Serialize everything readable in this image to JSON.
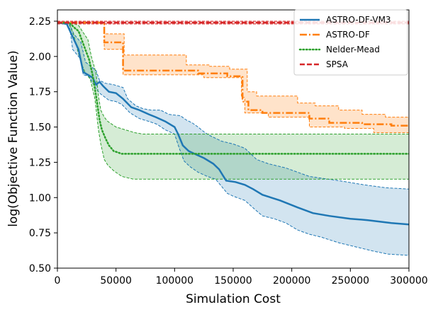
{
  "chart_data": {
    "type": "line",
    "xlabel": "Simulation Cost",
    "ylabel": "log(Objective Function Value)",
    "xlim": [
      0,
      300000
    ],
    "ylim": [
      0.5,
      2.33
    ],
    "xticks": [
      0,
      50000,
      100000,
      150000,
      200000,
      250000,
      300000
    ],
    "xtick_labels": [
      "0",
      "50000",
      "100000",
      "150000",
      "200000",
      "250000",
      "300000"
    ],
    "yticks": [
      0.5,
      0.75,
      1.0,
      1.25,
      1.5,
      1.75,
      2.0,
      2.25
    ],
    "ytick_labels": [
      "0.50",
      "0.75",
      "1.00",
      "1.25",
      "1.50",
      "1.75",
      "2.00",
      "2.25"
    ],
    "grid": false,
    "legend_position": "top-right",
    "series": [
      {
        "name": "ASTRO-DF-VM3",
        "color": "#1f77b4",
        "line_style": "solid",
        "band_opacity": 0.2,
        "points": [
          [
            0,
            2.24
          ],
          [
            8000,
            2.23
          ],
          [
            13000,
            2.14
          ],
          [
            18000,
            2.05
          ],
          [
            22000,
            1.89
          ],
          [
            30000,
            1.85
          ],
          [
            33000,
            1.8
          ],
          [
            36000,
            1.82
          ],
          [
            39000,
            1.79
          ],
          [
            44000,
            1.75
          ],
          [
            50000,
            1.74
          ],
          [
            56000,
            1.7
          ],
          [
            63000,
            1.64
          ],
          [
            70000,
            1.62
          ],
          [
            78000,
            1.59
          ],
          [
            84000,
            1.57
          ],
          [
            92000,
            1.54
          ],
          [
            100000,
            1.5
          ],
          [
            103000,
            1.45
          ],
          [
            107000,
            1.37
          ],
          [
            112000,
            1.33
          ],
          [
            117000,
            1.31
          ],
          [
            125000,
            1.28
          ],
          [
            133000,
            1.24
          ],
          [
            138000,
            1.2
          ],
          [
            141000,
            1.16
          ],
          [
            144000,
            1.12
          ],
          [
            152000,
            1.11
          ],
          [
            160000,
            1.09
          ],
          [
            167000,
            1.06
          ],
          [
            175000,
            1.02
          ],
          [
            190000,
            0.98
          ],
          [
            205000,
            0.93
          ],
          [
            218000,
            0.89
          ],
          [
            232000,
            0.87
          ],
          [
            250000,
            0.85
          ],
          [
            265000,
            0.84
          ],
          [
            285000,
            0.82
          ],
          [
            300000,
            0.81
          ]
        ],
        "upper": [
          [
            0,
            2.24
          ],
          [
            10000,
            2.24
          ],
          [
            14000,
            2.16
          ],
          [
            20000,
            2.1
          ],
          [
            24000,
            1.96
          ],
          [
            33000,
            1.9
          ],
          [
            36000,
            1.83
          ],
          [
            41000,
            1.81
          ],
          [
            48000,
            1.8
          ],
          [
            56000,
            1.78
          ],
          [
            60000,
            1.7
          ],
          [
            67000,
            1.65
          ],
          [
            73000,
            1.63
          ],
          [
            80000,
            1.62
          ],
          [
            88000,
            1.62
          ],
          [
            95000,
            1.59
          ],
          [
            105000,
            1.58
          ],
          [
            110000,
            1.55
          ],
          [
            115000,
            1.53
          ],
          [
            120000,
            1.5
          ],
          [
            126000,
            1.46
          ],
          [
            130000,
            1.44
          ],
          [
            140000,
            1.4
          ],
          [
            150000,
            1.38
          ],
          [
            160000,
            1.35
          ],
          [
            170000,
            1.27
          ],
          [
            180000,
            1.24
          ],
          [
            195000,
            1.21
          ],
          [
            215000,
            1.15
          ],
          [
            240000,
            1.12
          ],
          [
            262000,
            1.09
          ],
          [
            280000,
            1.07
          ],
          [
            300000,
            1.06
          ]
        ],
        "lower": [
          [
            0,
            2.24
          ],
          [
            10000,
            2.24
          ],
          [
            13000,
            2.05
          ],
          [
            20000,
            1.98
          ],
          [
            22000,
            1.87
          ],
          [
            27000,
            1.86
          ],
          [
            33000,
            1.77
          ],
          [
            36000,
            1.74
          ],
          [
            44000,
            1.69
          ],
          [
            50000,
            1.68
          ],
          [
            55000,
            1.66
          ],
          [
            62000,
            1.6
          ],
          [
            70000,
            1.56
          ],
          [
            78000,
            1.54
          ],
          [
            85000,
            1.52
          ],
          [
            92000,
            1.48
          ],
          [
            100000,
            1.45
          ],
          [
            104000,
            1.35
          ],
          [
            108000,
            1.26
          ],
          [
            113000,
            1.22
          ],
          [
            120000,
            1.18
          ],
          [
            128000,
            1.15
          ],
          [
            135000,
            1.13
          ],
          [
            140000,
            1.08
          ],
          [
            145000,
            1.03
          ],
          [
            150000,
            1.01
          ],
          [
            160000,
            0.98
          ],
          [
            168000,
            0.92
          ],
          [
            175000,
            0.87
          ],
          [
            185000,
            0.85
          ],
          [
            195000,
            0.82
          ],
          [
            205000,
            0.77
          ],
          [
            215000,
            0.74
          ],
          [
            225000,
            0.72
          ],
          [
            240000,
            0.68
          ],
          [
            255000,
            0.65
          ],
          [
            270000,
            0.62
          ],
          [
            282000,
            0.6
          ],
          [
            300000,
            0.59
          ]
        ]
      },
      {
        "name": "ASTRO-DF",
        "color": "#ff7f0e",
        "line_style": "dashdot",
        "band_opacity": 0.22,
        "points": [
          [
            0,
            2.24
          ],
          [
            40000,
            2.24
          ],
          [
            40000,
            2.1
          ],
          [
            56000,
            2.1
          ],
          [
            56000,
            1.9
          ],
          [
            120000,
            1.9
          ],
          [
            120000,
            1.88
          ],
          [
            145000,
            1.88
          ],
          [
            145000,
            1.86
          ],
          [
            158000,
            1.86
          ],
          [
            158000,
            1.68
          ],
          [
            163000,
            1.68
          ],
          [
            163000,
            1.62
          ],
          [
            175000,
            1.62
          ],
          [
            175000,
            1.6
          ],
          [
            215000,
            1.6
          ],
          [
            215000,
            1.56
          ],
          [
            232000,
            1.56
          ],
          [
            232000,
            1.53
          ],
          [
            260000,
            1.53
          ],
          [
            260000,
            1.52
          ],
          [
            285000,
            1.52
          ],
          [
            285000,
            1.51
          ],
          [
            300000,
            1.51
          ]
        ],
        "upper": [
          [
            0,
            2.24
          ],
          [
            40000,
            2.24
          ],
          [
            40000,
            2.16
          ],
          [
            57000,
            2.16
          ],
          [
            57000,
            2.01
          ],
          [
            110000,
            2.01
          ],
          [
            110000,
            1.94
          ],
          [
            130000,
            1.94
          ],
          [
            130000,
            1.93
          ],
          [
            147000,
            1.93
          ],
          [
            147000,
            1.91
          ],
          [
            162000,
            1.91
          ],
          [
            162000,
            1.75
          ],
          [
            170000,
            1.75
          ],
          [
            170000,
            1.72
          ],
          [
            205000,
            1.72
          ],
          [
            205000,
            1.67
          ],
          [
            220000,
            1.67
          ],
          [
            220000,
            1.65
          ],
          [
            240000,
            1.65
          ],
          [
            240000,
            1.62
          ],
          [
            260000,
            1.62
          ],
          [
            260000,
            1.59
          ],
          [
            280000,
            1.59
          ],
          [
            280000,
            1.57
          ],
          [
            300000,
            1.57
          ]
        ],
        "lower": [
          [
            0,
            2.24
          ],
          [
            40000,
            2.24
          ],
          [
            40000,
            2.05
          ],
          [
            56000,
            2.05
          ],
          [
            56000,
            1.87
          ],
          [
            125000,
            1.87
          ],
          [
            125000,
            1.85
          ],
          [
            157000,
            1.85
          ],
          [
            157000,
            1.71
          ],
          [
            160000,
            1.71
          ],
          [
            160000,
            1.6
          ],
          [
            180000,
            1.6
          ],
          [
            180000,
            1.57
          ],
          [
            215000,
            1.57
          ],
          [
            215000,
            1.5
          ],
          [
            245000,
            1.5
          ],
          [
            245000,
            1.49
          ],
          [
            270000,
            1.49
          ],
          [
            270000,
            1.46
          ],
          [
            300000,
            1.46
          ]
        ]
      },
      {
        "name": "Nelder-Mead",
        "color": "#2ca02c",
        "line_style": "dotted",
        "band_opacity": 0.2,
        "points": [
          [
            0,
            2.24
          ],
          [
            10000,
            2.24
          ],
          [
            15000,
            2.2
          ],
          [
            18000,
            2.18
          ],
          [
            22000,
            2.09
          ],
          [
            27000,
            1.98
          ],
          [
            30000,
            1.87
          ],
          [
            33000,
            1.72
          ],
          [
            36000,
            1.55
          ],
          [
            38000,
            1.48
          ],
          [
            41000,
            1.42
          ],
          [
            44000,
            1.37
          ],
          [
            48000,
            1.33
          ],
          [
            55000,
            1.31
          ],
          [
            300000,
            1.31
          ]
        ],
        "upper": [
          [
            0,
            2.24
          ],
          [
            12000,
            2.24
          ],
          [
            18000,
            2.22
          ],
          [
            22000,
            2.17
          ],
          [
            26000,
            2.12
          ],
          [
            29000,
            2.0
          ],
          [
            31000,
            1.94
          ],
          [
            33000,
            1.88
          ],
          [
            35000,
            1.72
          ],
          [
            37000,
            1.62
          ],
          [
            40000,
            1.57
          ],
          [
            43000,
            1.54
          ],
          [
            50000,
            1.5
          ],
          [
            58000,
            1.48
          ],
          [
            66000,
            1.46
          ],
          [
            73000,
            1.45
          ],
          [
            300000,
            1.45
          ]
        ],
        "lower": [
          [
            0,
            2.24
          ],
          [
            10000,
            2.23
          ],
          [
            14000,
            2.15
          ],
          [
            17000,
            2.05
          ],
          [
            20000,
            1.96
          ],
          [
            24000,
            1.88
          ],
          [
            28000,
            1.84
          ],
          [
            32000,
            1.7
          ],
          [
            35000,
            1.48
          ],
          [
            37000,
            1.38
          ],
          [
            40000,
            1.27
          ],
          [
            43000,
            1.23
          ],
          [
            48000,
            1.19
          ],
          [
            55000,
            1.15
          ],
          [
            65000,
            1.13
          ],
          [
            300000,
            1.13
          ]
        ]
      },
      {
        "name": "SPSA",
        "color": "#d62728",
        "line_style": "dashed",
        "band_opacity": 0.25,
        "points": [
          [
            0,
            2.24
          ],
          [
            300000,
            2.24
          ]
        ],
        "upper": [
          [
            0,
            2.25
          ],
          [
            300000,
            2.25
          ]
        ],
        "lower": [
          [
            0,
            2.23
          ],
          [
            300000,
            2.23
          ]
        ]
      }
    ]
  }
}
